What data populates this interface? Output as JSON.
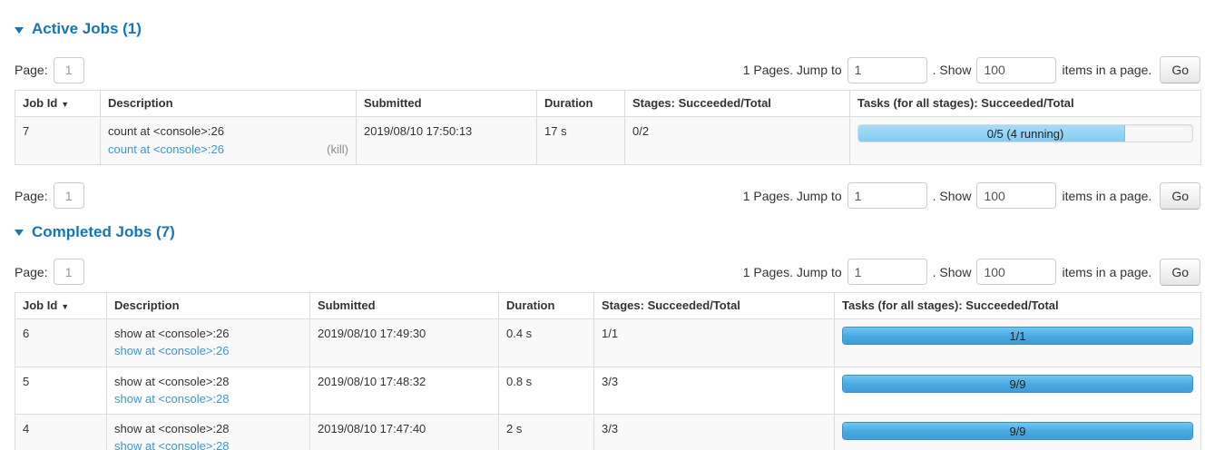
{
  "colors": {
    "heading_blue": "#1576b7",
    "link_blue": "#3b97d3",
    "running_bar_blue": "#8bd0f2",
    "completed_bar_blue": "#49a9e0",
    "row_stripe": "#f9f9f9",
    "table_border": "#dddddd"
  },
  "pagination": {
    "page_label": "Page:",
    "page_value": "1",
    "total_text": "1 Pages. Jump to",
    "jump_value": "1",
    "show_text": ". Show",
    "show_value": "100",
    "items_text": "items in a page.",
    "go_label": "Go"
  },
  "table_headers": {
    "job_id": "Job Id",
    "sort_arrow": "▼",
    "description": "Description",
    "submitted": "Submitted",
    "duration": "Duration",
    "stages": "Stages: Succeeded/Total",
    "tasks": "Tasks (for all stages): Succeeded/Total"
  },
  "active": {
    "title": "Active Jobs (1)",
    "row": {
      "job_id": "7",
      "description": "count at <console>:26",
      "description_link": "count at <console>:26",
      "kill_label": "(kill)",
      "submitted": "2019/08/10 17:50:13",
      "duration": "17 s",
      "stages": "0/2",
      "tasks_label": "0/5 (4 running)",
      "tasks_percent": 80
    }
  },
  "completed": {
    "title": "Completed Jobs (7)",
    "rows": [
      {
        "job_id": "6",
        "description": "show at <console>:26",
        "description_link": "show at <console>:26",
        "submitted": "2019/08/10 17:49:30",
        "duration": "0.4 s",
        "stages": "1/1",
        "tasks_label": "1/1",
        "tasks_percent": 100
      },
      {
        "job_id": "5",
        "description": "show at <console>:28",
        "description_link": "show at <console>:28",
        "submitted": "2019/08/10 17:48:32",
        "duration": "0.8 s",
        "stages": "3/3",
        "tasks_label": "9/9",
        "tasks_percent": 100
      },
      {
        "job_id": "4",
        "description": "show at <console>:28",
        "description_link": "show at <console>:28",
        "submitted": "2019/08/10 17:47:40",
        "duration": "2 s",
        "stages": "3/3",
        "tasks_label": "9/9",
        "tasks_percent": 100
      }
    ]
  }
}
